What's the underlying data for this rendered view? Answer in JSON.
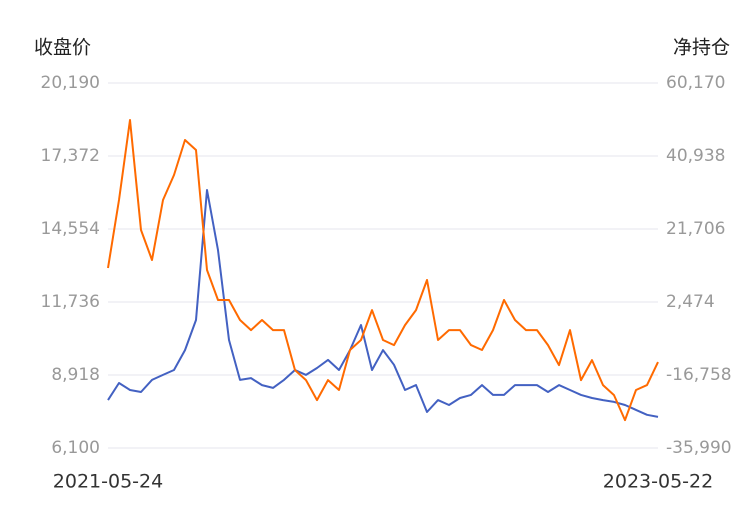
{
  "chart_data": {
    "type": "line",
    "y_label": "收盘价",
    "y2_label": "净持仓",
    "categories": [
      "2021-05-24",
      null,
      null,
      null,
      null,
      null,
      null,
      null,
      null,
      null,
      null,
      null,
      null,
      null,
      null,
      null,
      null,
      null,
      null,
      null,
      null,
      null,
      null,
      null,
      null,
      null,
      null,
      null,
      null,
      null,
      null,
      null,
      null,
      null,
      null,
      null,
      null,
      null,
      null,
      null,
      null,
      null,
      null,
      null,
      null,
      null,
      null,
      null,
      null,
      null,
      "2023-05-22"
    ],
    "series": [
      {
        "name": "收盘价",
        "color": "#4361c2",
        "axis": "y",
        "values": [
          7950,
          8610,
          8340,
          8260,
          8730,
          8920,
          9110,
          9880,
          11040,
          16060,
          13740,
          10270,
          8730,
          8800,
          8530,
          8420,
          8730,
          9110,
          8920,
          9190,
          9500,
          9110,
          9880,
          10850,
          9110,
          9880,
          9310,
          8340,
          8530,
          7490,
          7950,
          7760,
          8030,
          8150,
          8530,
          8150,
          8150,
          8530,
          8530,
          8530,
          8260,
          8530,
          8340,
          8150,
          8030,
          7950,
          7880,
          7760,
          7570,
          7380,
          7300
        ]
      },
      {
        "name": "净持仓",
        "color": "#ff6a00",
        "axis": "y2",
        "values": [
          11420,
          29340,
          50420,
          21440,
          13540,
          29340,
          35930,
          45150,
          42520,
          10900,
          3000,
          3000,
          -2280,
          -4920,
          -2280,
          -4920,
          -4920,
          -15460,
          -18090,
          -23360,
          -18090,
          -20720,
          -10180,
          -7550,
          350,
          -7550,
          -8870,
          -3600,
          350,
          8260,
          -7550,
          -4920,
          -4920,
          -8870,
          -10180,
          -4920,
          3000,
          -2280,
          -4920,
          -4920,
          -8870,
          -14140,
          -4920,
          -18090,
          -12820,
          -19410,
          -22050,
          -28630,
          -20720,
          -19410,
          -13350
        ]
      }
    ],
    "ylim": [
      6100,
      20190
    ],
    "yticks": [
      {
        "value": 6100,
        "label": "6,100"
      },
      {
        "value": 8918,
        "label": "8,918"
      },
      {
        "value": 11736,
        "label": "11,736"
      },
      {
        "value": 14554,
        "label": "14,554"
      },
      {
        "value": 17372,
        "label": "17,372"
      },
      {
        "value": 20190,
        "label": "20,190"
      }
    ],
    "y2lim": [
      -35990,
      60170
    ],
    "y2ticks": [
      {
        "value": -35990,
        "label": "-35,990"
      },
      {
        "value": -16758,
        "label": "-16,758"
      },
      {
        "value": 2474,
        "label": "2,474"
      },
      {
        "value": 21706,
        "label": "21,706"
      },
      {
        "value": 40938,
        "label": "40,938"
      },
      {
        "value": 60170,
        "label": "60,170"
      }
    ],
    "grid": true
  }
}
